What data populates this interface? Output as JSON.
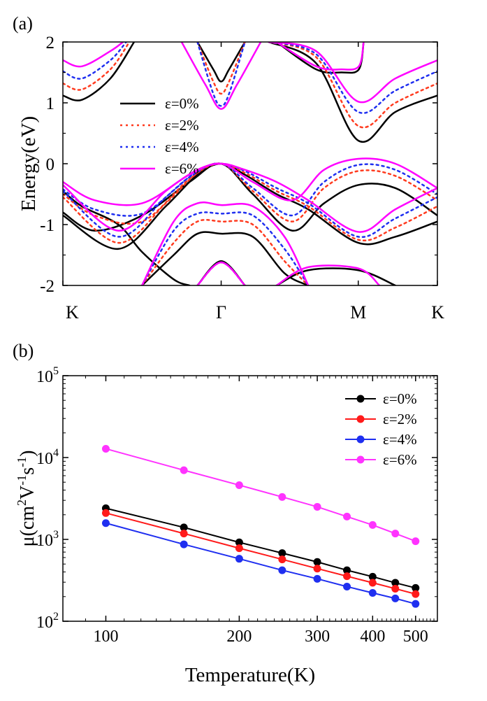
{
  "colors": {
    "eps0": "#000000",
    "eps2": "#ff3b1f",
    "eps4": "#1f2ff0",
    "eps6": "#ff00ff"
  },
  "chart_data": [
    {
      "panel": "(a)",
      "type": "line",
      "ylabel": "Energy(eV)",
      "ylim": [
        -2,
        2
      ],
      "yticks": [
        -2,
        -1,
        0,
        1,
        2
      ],
      "xticks": [
        "K",
        "Γ",
        "M",
        "K"
      ],
      "x_positions": [
        0,
        1,
        1.866,
        2.366
      ],
      "grid": false,
      "legend_position": "center-left",
      "line_styles": {
        "ε=0%": "solid",
        "ε=2%": "dotted",
        "ε=4%": "dotted",
        "ε=6%": "solid"
      },
      "series": [
        {
          "name": "ε=0%",
          "color": "#000000",
          "bands": [
            [
              [
                0,
                1.12
              ],
              [
                0.12,
                1.05
              ],
              [
                0.3,
                1.4
              ],
              [
                0.45,
                2.0
              ]
            ],
            [
              [
                0.85,
                2.0
              ],
              [
                0.95,
                1.55
              ],
              [
                1.0,
                1.35
              ],
              [
                1.05,
                1.55
              ],
              [
                1.15,
                2.0
              ]
            ],
            [
              [
                1.3,
                2.0
              ],
              [
                1.6,
                1.65
              ],
              [
                1.866,
                0.38
              ],
              [
                2.1,
                0.85
              ],
              [
                2.366,
                1.12
              ]
            ],
            [
              [
                1.35,
                2.0
              ],
              [
                1.6,
                1.55
              ],
              [
                1.76,
                1.5
              ],
              [
                1.87,
                1.55
              ],
              [
                1.9,
                2.0
              ]
            ],
            [
              [
                0,
                -0.85
              ],
              [
                0.35,
                -1.4
              ],
              [
                0.65,
                -0.7
              ],
              [
                0.85,
                -0.18
              ],
              [
                1.0,
                0.0
              ],
              [
                1.15,
                -0.18
              ],
              [
                1.35,
                -0.5
              ],
              [
                1.55,
                -0.75
              ],
              [
                1.866,
                -1.3
              ],
              [
                2.1,
                -1.2
              ],
              [
                2.366,
                -0.95
              ]
            ],
            [
              [
                0,
                -0.8
              ],
              [
                0.2,
                -1.1
              ],
              [
                0.5,
                -0.85
              ],
              [
                0.8,
                -0.3
              ],
              [
                1.0,
                0.0
              ],
              [
                1.2,
                -0.5
              ],
              [
                1.45,
                -1.1
              ],
              [
                1.65,
                -0.65
              ],
              [
                1.866,
                -0.35
              ],
              [
                2.1,
                -0.4
              ],
              [
                2.366,
                -0.85
              ]
            ],
            [
              [
                0,
                -0.45
              ],
              [
                0.12,
                -0.7
              ],
              [
                0.35,
                -1.0
              ],
              [
                0.5,
                -1.45
              ],
              [
                0.7,
                -1.9
              ],
              [
                0.8,
                -2.0
              ]
            ],
            [
              [
                0.5,
                -2.0
              ],
              [
                0.7,
                -1.5
              ],
              [
                0.85,
                -1.15
              ],
              [
                1.0,
                -1.15
              ],
              [
                1.2,
                -1.2
              ],
              [
                1.4,
                -1.8
              ],
              [
                1.55,
                -2.0
              ]
            ],
            [
              [
                0.85,
                -2.0
              ],
              [
                1.0,
                -1.6
              ],
              [
                1.15,
                -2.0
              ]
            ],
            [
              [
                1.35,
                -2.0
              ],
              [
                1.55,
                -1.75
              ],
              [
                1.866,
                -1.75
              ],
              [
                2.1,
                -2.0
              ]
            ]
          ]
        },
        {
          "name": "ε=2%",
          "color": "#ff3b1f",
          "bands": [
            [
              [
                0,
                1.32
              ],
              [
                0.12,
                1.22
              ],
              [
                0.3,
                1.55
              ],
              [
                0.42,
                2.0
              ]
            ],
            [
              [
                0.85,
                2.0
              ],
              [
                0.95,
                1.35
              ],
              [
                1.0,
                1.15
              ],
              [
                1.05,
                1.35
              ],
              [
                1.15,
                2.0
              ]
            ],
            [
              [
                1.3,
                2.0
              ],
              [
                1.6,
                1.75
              ],
              [
                1.866,
                0.62
              ],
              [
                2.1,
                1.0
              ],
              [
                2.366,
                1.32
              ]
            ],
            [
              [
                0,
                -0.55
              ],
              [
                0.35,
                -1.3
              ],
              [
                0.65,
                -0.65
              ],
              [
                0.85,
                -0.15
              ],
              [
                1.0,
                0.0
              ],
              [
                1.15,
                -0.15
              ],
              [
                1.35,
                -0.45
              ],
              [
                1.55,
                -0.7
              ],
              [
                1.866,
                -1.25
              ],
              [
                2.1,
                -1.05
              ],
              [
                2.366,
                -0.7
              ]
            ],
            [
              [
                0,
                -0.5
              ],
              [
                0.2,
                -0.85
              ],
              [
                0.5,
                -0.95
              ],
              [
                0.8,
                -0.25
              ],
              [
                1.0,
                0.0
              ],
              [
                1.2,
                -0.45
              ],
              [
                1.45,
                -0.95
              ],
              [
                1.65,
                -0.4
              ],
              [
                1.866,
                -0.12
              ],
              [
                2.1,
                -0.2
              ],
              [
                2.366,
                -0.6
              ]
            ],
            [
              [
                0.5,
                -2.0
              ],
              [
                0.7,
                -1.3
              ],
              [
                0.85,
                -0.95
              ],
              [
                1.0,
                -0.95
              ],
              [
                1.2,
                -1.0
              ],
              [
                1.4,
                -1.6
              ],
              [
                1.55,
                -2.0
              ]
            ],
            [
              [
                0.85,
                -2.0
              ],
              [
                1.0,
                -1.62
              ],
              [
                1.15,
                -2.0
              ]
            ]
          ]
        },
        {
          "name": "ε=4%",
          "color": "#1f2ff0",
          "bands": [
            [
              [
                0,
                1.52
              ],
              [
                0.12,
                1.4
              ],
              [
                0.3,
                1.7
              ],
              [
                0.4,
                2.0
              ]
            ],
            [
              [
                0.85,
                2.0
              ],
              [
                0.95,
                1.15
              ],
              [
                1.0,
                0.95
              ],
              [
                1.05,
                1.15
              ],
              [
                1.15,
                2.0
              ]
            ],
            [
              [
                1.3,
                2.0
              ],
              [
                1.6,
                1.8
              ],
              [
                1.866,
                0.85
              ],
              [
                2.1,
                1.2
              ],
              [
                2.366,
                1.52
              ]
            ],
            [
              [
                0,
                -0.45
              ],
              [
                0.35,
                -1.2
              ],
              [
                0.65,
                -0.55
              ],
              [
                0.85,
                -0.12
              ],
              [
                1.0,
                0.0
              ],
              [
                1.15,
                -0.12
              ],
              [
                1.35,
                -0.4
              ],
              [
                1.55,
                -0.65
              ],
              [
                1.866,
                -1.2
              ],
              [
                2.1,
                -0.9
              ],
              [
                2.366,
                -0.55
              ]
            ],
            [
              [
                0,
                -0.42
              ],
              [
                0.2,
                -0.75
              ],
              [
                0.5,
                -0.82
              ],
              [
                0.8,
                -0.22
              ],
              [
                1.0,
                0.0
              ],
              [
                1.2,
                -0.4
              ],
              [
                1.45,
                -0.85
              ],
              [
                1.65,
                -0.3
              ],
              [
                1.866,
                -0.02
              ],
              [
                2.1,
                -0.1
              ],
              [
                2.366,
                -0.5
              ]
            ],
            [
              [
                0.5,
                -2.0
              ],
              [
                0.7,
                -1.1
              ],
              [
                0.85,
                -0.82
              ],
              [
                1.0,
                -0.82
              ],
              [
                1.2,
                -0.85
              ],
              [
                1.4,
                -1.4
              ],
              [
                1.55,
                -2.0
              ]
            ],
            [
              [
                0.85,
                -2.0
              ],
              [
                1.0,
                -1.62
              ],
              [
                1.15,
                -2.0
              ]
            ]
          ]
        },
        {
          "name": "ε=6%",
          "color": "#ff00ff",
          "bands": [
            [
              [
                0,
                1.7
              ],
              [
                0.12,
                1.6
              ],
              [
                0.3,
                1.85
              ],
              [
                0.38,
                2.0
              ]
            ],
            [
              [
                0.75,
                2.0
              ],
              [
                0.9,
                1.3
              ],
              [
                1.0,
                0.9
              ],
              [
                1.1,
                1.3
              ],
              [
                1.25,
                2.0
              ]
            ],
            [
              [
                1.3,
                2.0
              ],
              [
                1.6,
                1.85
              ],
              [
                1.866,
                1.02
              ],
              [
                2.1,
                1.4
              ],
              [
                2.366,
                1.7
              ]
            ],
            [
              [
                1.35,
                2.0
              ],
              [
                1.6,
                1.6
              ],
              [
                1.76,
                1.55
              ],
              [
                1.87,
                1.6
              ],
              [
                1.9,
                2.0
              ]
            ],
            [
              [
                0,
                -0.35
              ],
              [
                0.35,
                -1.1
              ],
              [
                0.65,
                -0.45
              ],
              [
                0.85,
                -0.1
              ],
              [
                1.0,
                0.0
              ],
              [
                1.15,
                -0.1
              ],
              [
                1.35,
                -0.3
              ],
              [
                1.55,
                -0.6
              ],
              [
                1.866,
                -1.12
              ],
              [
                2.1,
                -0.75
              ],
              [
                2.366,
                -0.4
              ]
            ],
            [
              [
                0,
                -0.3
              ],
              [
                0.2,
                -0.6
              ],
              [
                0.5,
                -0.65
              ],
              [
                0.8,
                -0.18
              ],
              [
                1.0,
                0.0
              ],
              [
                1.2,
                -0.3
              ],
              [
                1.45,
                -0.6
              ],
              [
                1.65,
                -0.1
              ],
              [
                1.866,
                0.08
              ],
              [
                2.1,
                0.0
              ],
              [
                2.366,
                -0.4
              ]
            ],
            [
              [
                0.5,
                -2.0
              ],
              [
                0.7,
                -0.95
              ],
              [
                0.85,
                -0.65
              ],
              [
                1.0,
                -0.68
              ],
              [
                1.2,
                -0.7
              ],
              [
                1.4,
                -1.2
              ],
              [
                1.55,
                -2.0
              ]
            ],
            [
              [
                0.85,
                -2.0
              ],
              [
                1.0,
                -1.62
              ],
              [
                1.15,
                -2.0
              ]
            ],
            [
              [
                1.35,
                -2.0
              ],
              [
                1.55,
                -1.7
              ],
              [
                1.866,
                -1.72
              ],
              [
                2.0,
                -2.0
              ]
            ]
          ]
        }
      ],
      "legend": [
        "ε=0%",
        "ε=2%",
        "ε=4%",
        "ε=6%"
      ]
    },
    {
      "panel": "(b)",
      "type": "line",
      "xscale": "log",
      "yscale": "log",
      "xlabel": "Temperature(K)",
      "ylabel": "μ(cm²V⁻¹s⁻¹)",
      "xlim": [
        80,
        560
      ],
      "ylim": [
        100,
        100000
      ],
      "xticks": [
        100,
        200,
        300,
        400,
        500
      ],
      "yticks": [
        100,
        1000,
        10000,
        100000
      ],
      "ytick_labels": [
        {
          "base": "10",
          "exp": "2"
        },
        {
          "base": "10",
          "exp": "3"
        },
        {
          "base": "10",
          "exp": "4"
        },
        {
          "base": "10",
          "exp": "5"
        }
      ],
      "grid": false,
      "legend_position": "top-right",
      "x": [
        100,
        150,
        200,
        250,
        300,
        350,
        400,
        450,
        500
      ],
      "series": [
        {
          "name": "ε=0%",
          "color": "#000000",
          "values": [
            2400,
            1400,
            920,
            680,
            530,
            420,
            350,
            295,
            255
          ]
        },
        {
          "name": "ε=2%",
          "color": "#ff1a1a",
          "values": [
            2100,
            1180,
            780,
            570,
            440,
            355,
            295,
            250,
            215
          ]
        },
        {
          "name": "ε=4%",
          "color": "#1f2ff0",
          "values": [
            1580,
            870,
            580,
            420,
            330,
            265,
            222,
            190,
            163
          ]
        },
        {
          "name": "ε=6%",
          "color": "#ff33ff",
          "values": [
            12800,
            7000,
            4600,
            3300,
            2500,
            1900,
            1500,
            1180,
            950
          ]
        }
      ]
    }
  ]
}
